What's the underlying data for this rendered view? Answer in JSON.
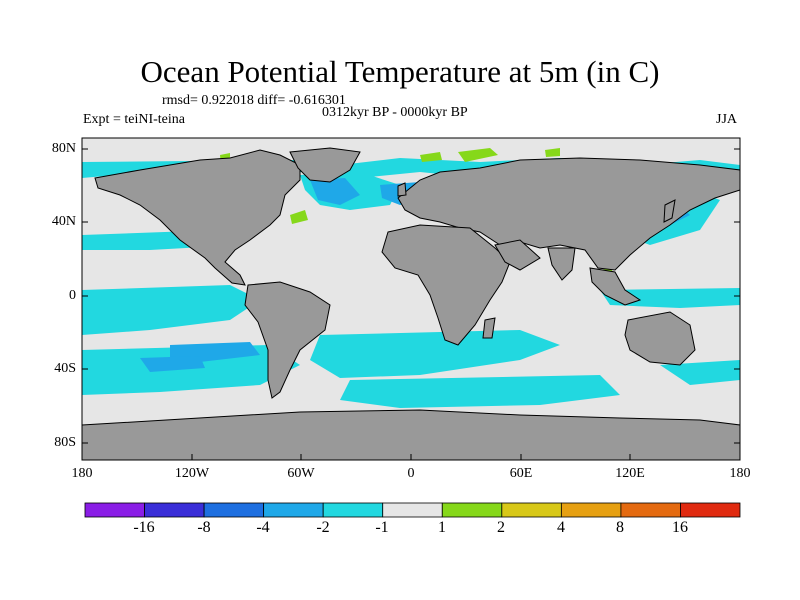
{
  "title": "Ocean Potential Temperature at 5m (in C)",
  "stats": "rmsd= 0.922018 diff= -0.616301",
  "period": "0312kyr BP - 0000kyr BP",
  "experiment": "Expt = teiNI-teina",
  "season": "JJA",
  "lat_labels": [
    "80N",
    "40N",
    "0",
    "40S",
    "80S"
  ],
  "lon_labels": [
    "180",
    "120W",
    "60W",
    "0",
    "60E",
    "120E",
    "180"
  ],
  "colorbar": {
    "labels": [
      "-16",
      "-8",
      "-4",
      "-2",
      "-1",
      "1",
      "2",
      "4",
      "8",
      "16"
    ],
    "colors": [
      "#8a1de6",
      "#3a2ed8",
      "#1e6fe0",
      "#1fa8e8",
      "#22d8e0",
      "#e6e6e6",
      "#86d81a",
      "#d8c818",
      "#e6a012",
      "#e46a10",
      "#e02a10"
    ]
  },
  "map_colors": {
    "land": "#999999",
    "ocean_neutral": "#e6e6e6",
    "cool": "#22d8e0",
    "cooler": "#1fa8e8",
    "coolest": "#1e6fe0",
    "warm": "#86d81a"
  }
}
